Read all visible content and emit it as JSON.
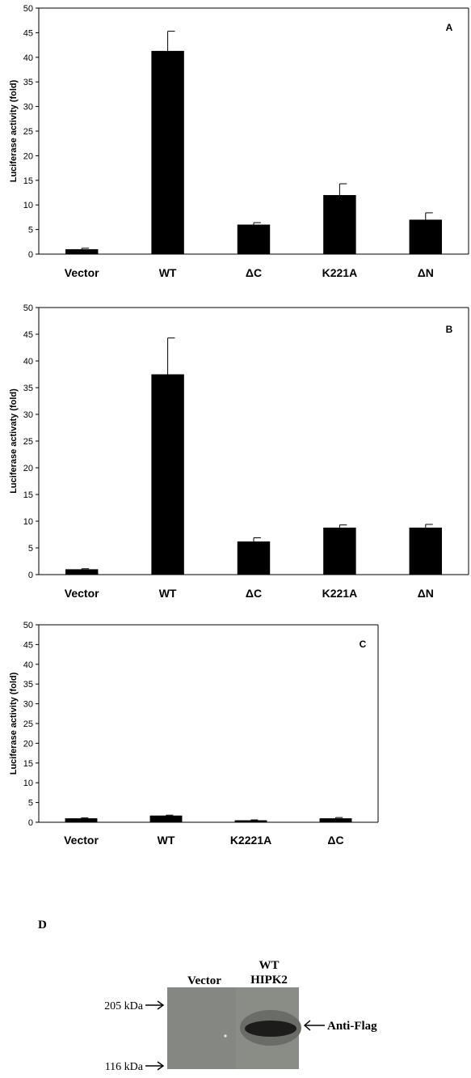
{
  "chart_data": [
    {
      "type": "bar",
      "panel_label": "A",
      "categories": [
        "Vector",
        "WT",
        "ΔC",
        "K221A",
        "ΔN"
      ],
      "values": [
        1.0,
        41.3,
        6.0,
        12.0,
        7.0
      ],
      "errors": [
        0.2,
        4.0,
        0.4,
        2.3,
        1.4
      ],
      "ylabel": "Luciferase activity (fold)",
      "ylim": [
        0,
        50
      ],
      "yticks": [
        0,
        5,
        10,
        15,
        20,
        25,
        30,
        35,
        40,
        45,
        50
      ],
      "color": "#000000"
    },
    {
      "type": "bar",
      "panel_label": "B",
      "categories": [
        "Vector",
        "WT",
        "ΔC",
        "K221A",
        "ΔN"
      ],
      "values": [
        1.0,
        37.5,
        6.2,
        8.8,
        8.8
      ],
      "errors": [
        0.1,
        6.8,
        0.7,
        0.5,
        0.6
      ],
      "ylabel": "Luciferase activaty (fold)",
      "ylim": [
        0,
        50
      ],
      "yticks": [
        0,
        5,
        10,
        15,
        20,
        25,
        30,
        35,
        40,
        45,
        50
      ],
      "color": "#000000"
    },
    {
      "type": "bar",
      "panel_label": "C",
      "categories": [
        "Vector",
        "WT",
        "K2221A",
        "ΔC"
      ],
      "values": [
        1.0,
        1.7,
        0.5,
        1.0
      ],
      "errors": [
        0.1,
        0.1,
        0.1,
        0.2
      ],
      "ylabel": "Luciferase activity (fold)",
      "ylim": [
        0,
        50
      ],
      "yticks": [
        0,
        5,
        10,
        15,
        20,
        25,
        30,
        35,
        40,
        45,
        50
      ],
      "color": "#000000"
    }
  ],
  "blot": {
    "panel_label": "D",
    "lanes": [
      "Vector",
      "WT",
      "HIPK2"
    ],
    "markers": [
      "205 kDa",
      "116 kDa"
    ],
    "annotation": "Anti-Flag"
  }
}
